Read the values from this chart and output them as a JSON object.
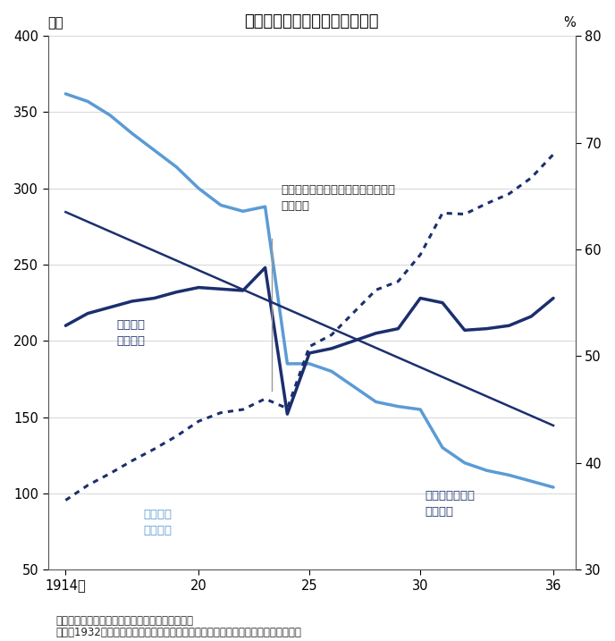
{
  "title": "東京府の市部と郡部の人口分布",
  "ylabel_left": "万人",
  "ylabel_right": "%",
  "xlabel_note1": "（出所）「東京府統計書」各年版を基に筆者作成",
  "xlabel_note2": "（注）1932年の東京市域拡大以後についても、拡大以前の市・郡地域の人口を示す",
  "annotation_text": "震災前の市部人口シェアのトレンド\n（右軸）",
  "label_shibu": "市部人口\n（左軸）",
  "label_gunbu": "郡部人口\n（左軸）",
  "label_share": "市部人口シェア\n（右軸）",
  "years_shibu": [
    1914,
    1915,
    1916,
    1917,
    1918,
    1919,
    1920,
    1921,
    1922,
    1923,
    1924,
    1925,
    1926,
    1927,
    1928,
    1929,
    1930,
    1931,
    1932,
    1933,
    1934,
    1935,
    1936
  ],
  "shibu_pop": [
    210,
    218,
    222,
    226,
    228,
    232,
    235,
    234,
    233,
    248,
    152,
    192,
    195,
    200,
    205,
    208,
    228,
    225,
    207,
    208,
    210,
    216,
    228
  ],
  "years_gunbu": [
    1914,
    1915,
    1916,
    1917,
    1918,
    1919,
    1920,
    1921,
    1922,
    1923,
    1924,
    1925,
    1926,
    1927,
    1928,
    1929,
    1930,
    1931,
    1932,
    1933,
    1934,
    1935,
    1936
  ],
  "gunbu_pop": [
    362,
    357,
    348,
    336,
    325,
    314,
    300,
    289,
    285,
    288,
    185,
    185,
    180,
    170,
    160,
    157,
    155,
    130,
    120,
    115,
    112,
    108,
    104
  ],
  "years_share": [
    1914,
    1915,
    1916,
    1917,
    1918,
    1919,
    1920,
    1921,
    1922,
    1923,
    1924,
    1925,
    1926,
    1927,
    1928,
    1929,
    1930,
    1931,
    1932,
    1933,
    1934,
    1935,
    1936
  ],
  "share_vals": [
    36.5,
    37.9,
    39.0,
    40.2,
    41.3,
    42.5,
    43.9,
    44.7,
    45.0,
    46.0,
    45.1,
    50.9,
    52.0,
    54.1,
    56.2,
    57.0,
    59.5,
    63.4,
    63.3,
    64.3,
    65.2,
    66.7,
    68.9
  ],
  "trend_x": [
    1914,
    1936
  ],
  "trend_y": [
    63.5,
    43.5
  ],
  "ylim_left": [
    50,
    400
  ],
  "ylim_right": [
    30,
    80
  ],
  "yticks_left": [
    50,
    100,
    150,
    200,
    250,
    300,
    350,
    400
  ],
  "yticks_right": [
    30,
    40,
    50,
    60,
    70,
    80
  ],
  "xticks": [
    1914,
    1920,
    1925,
    1930,
    1936
  ],
  "xticklabels": [
    "1914年",
    "20",
    "25",
    "30",
    "36"
  ],
  "xlim": [
    1913.2,
    1937.0
  ],
  "color_shibu": "#1b2f6e",
  "color_gunbu": "#5b9bd5",
  "color_share": "#1b2f6e",
  "color_trend": "#1b2f6e",
  "color_annotation_line": "#999999",
  "background_color": "#ffffff"
}
